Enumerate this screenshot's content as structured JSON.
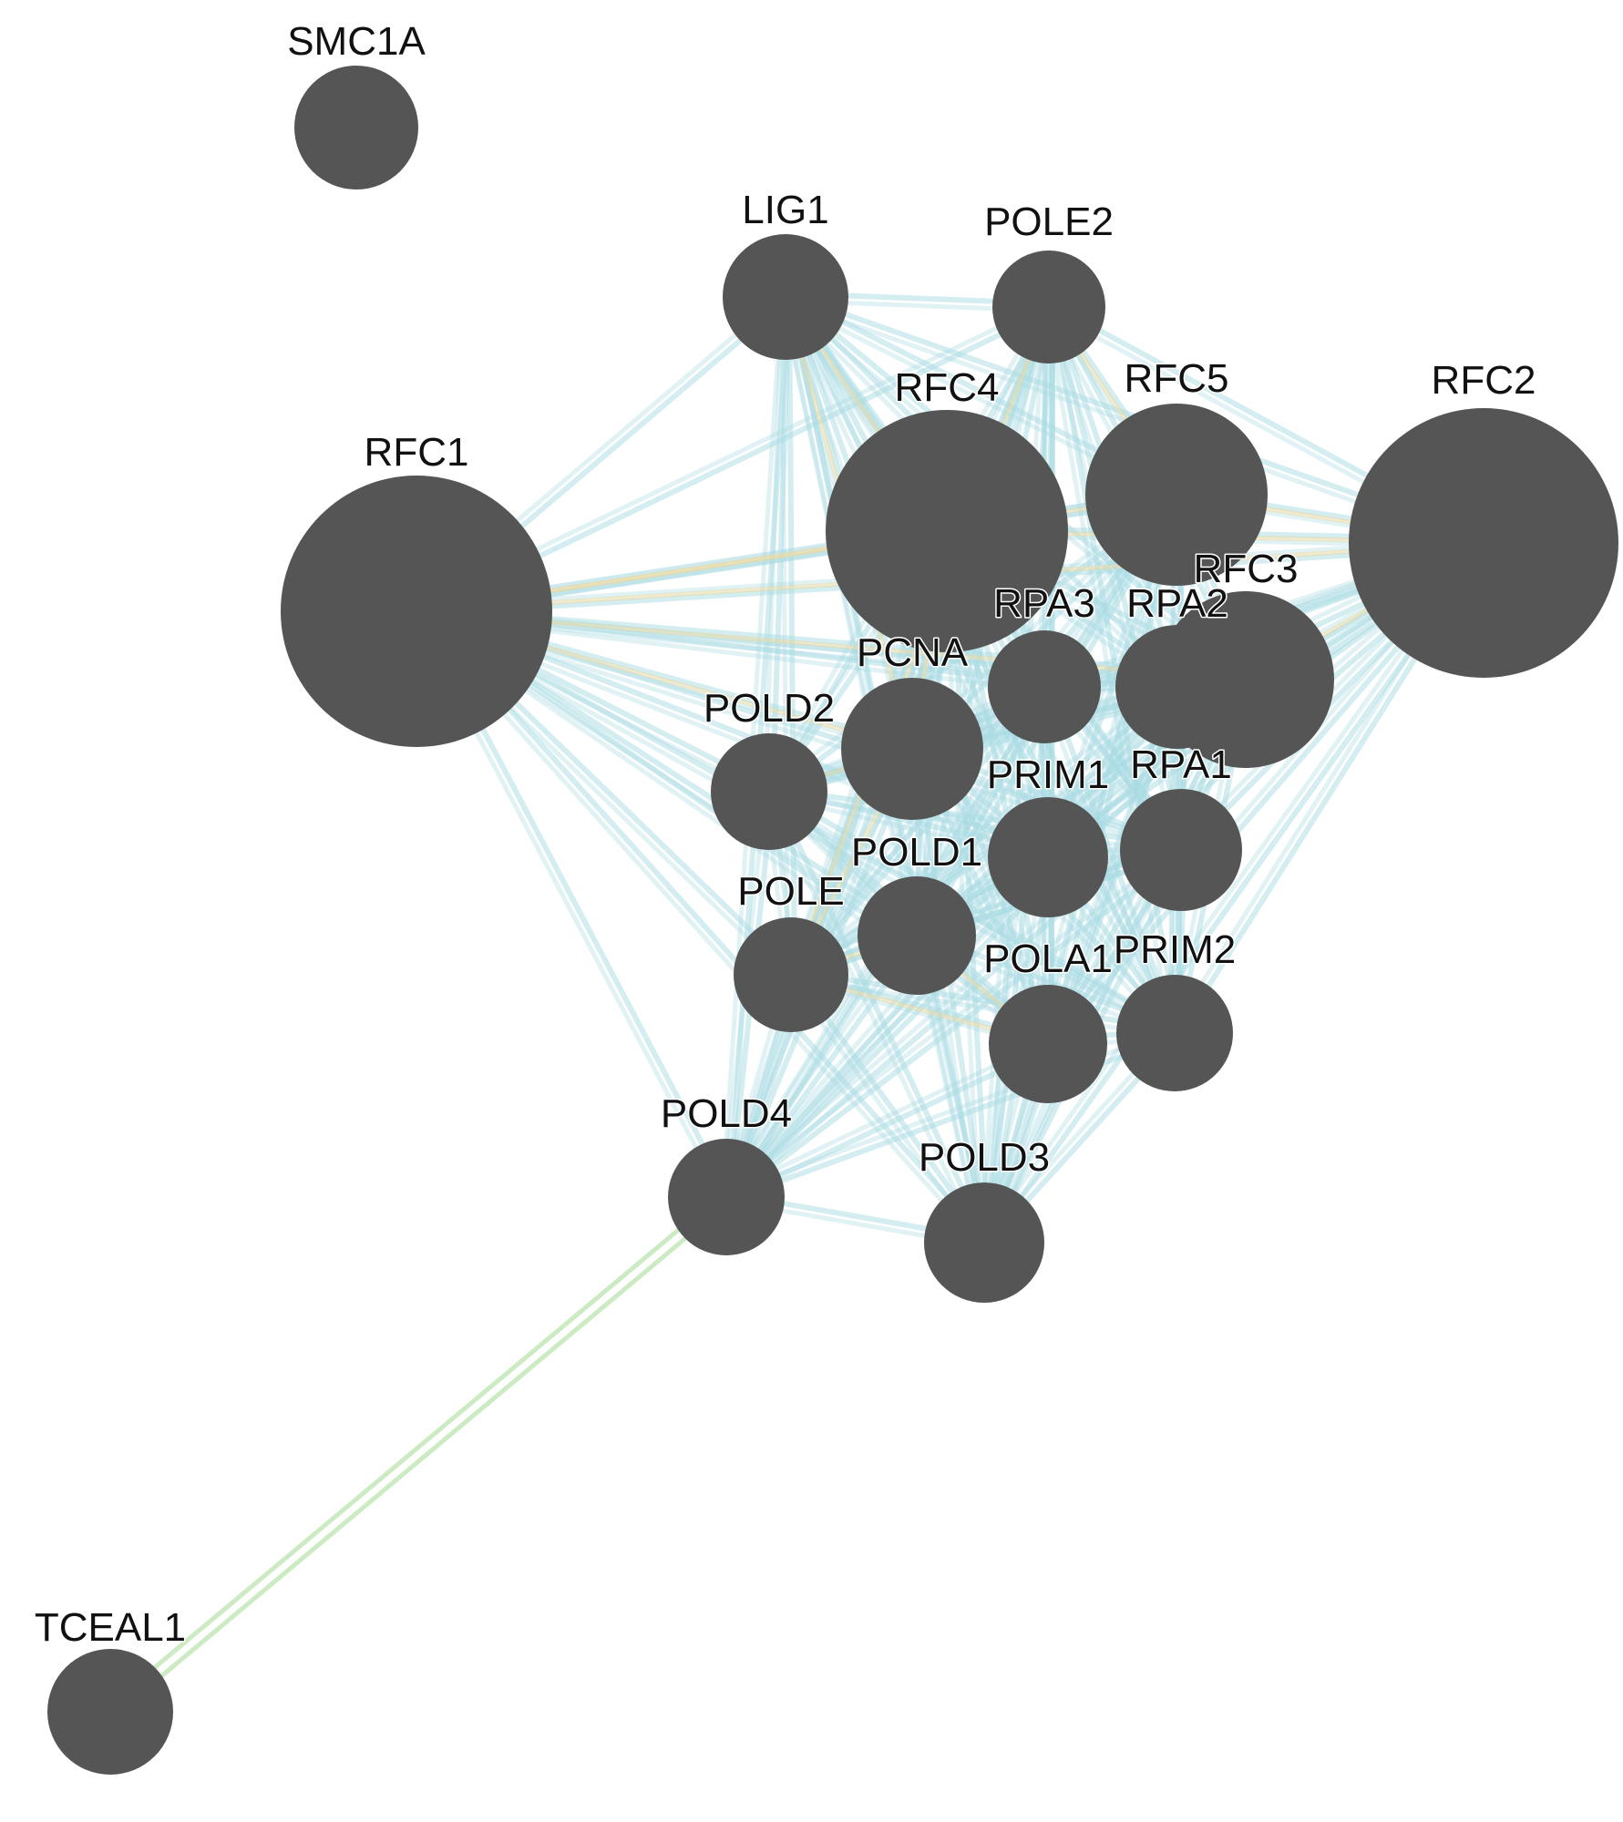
{
  "colors": {
    "node_fill": "#555555",
    "edge_pathway": "#a9dbe3",
    "edge_interaction": "#e6d9a6",
    "edge_green": "#bfe6b4",
    "label_color": "#111111",
    "background": "#ffffff"
  },
  "nodes": [
    {
      "id": "SMC1A",
      "label": "SMC1A"
    },
    {
      "id": "LIG1",
      "label": "LIG1"
    },
    {
      "id": "POLE2",
      "label": "POLE2"
    },
    {
      "id": "RFC4",
      "label": "RFC4"
    },
    {
      "id": "RFC5",
      "label": "RFC5"
    },
    {
      "id": "RFC2",
      "label": "RFC2"
    },
    {
      "id": "RFC1",
      "label": "RFC1",
      "pattern": "hatched"
    },
    {
      "id": "RFC3",
      "label": "RFC3"
    },
    {
      "id": "RPA3",
      "label": "RPA3"
    },
    {
      "id": "RPA2",
      "label": "RPA2"
    },
    {
      "id": "PCNA",
      "label": "PCNA"
    },
    {
      "id": "POLD2",
      "label": "POLD2"
    },
    {
      "id": "PRIM1",
      "label": "PRIM1"
    },
    {
      "id": "RPA1",
      "label": "RPA1"
    },
    {
      "id": "POLD1",
      "label": "POLD1"
    },
    {
      "id": "POLE",
      "label": "POLE"
    },
    {
      "id": "POLA1",
      "label": "POLA1"
    },
    {
      "id": "PRIM2",
      "label": "PRIM2"
    },
    {
      "id": "POLD4",
      "label": "POLD4"
    },
    {
      "id": "POLD3",
      "label": "POLD3"
    },
    {
      "id": "TCEAL1",
      "label": "TCEAL1"
    }
  ]
}
